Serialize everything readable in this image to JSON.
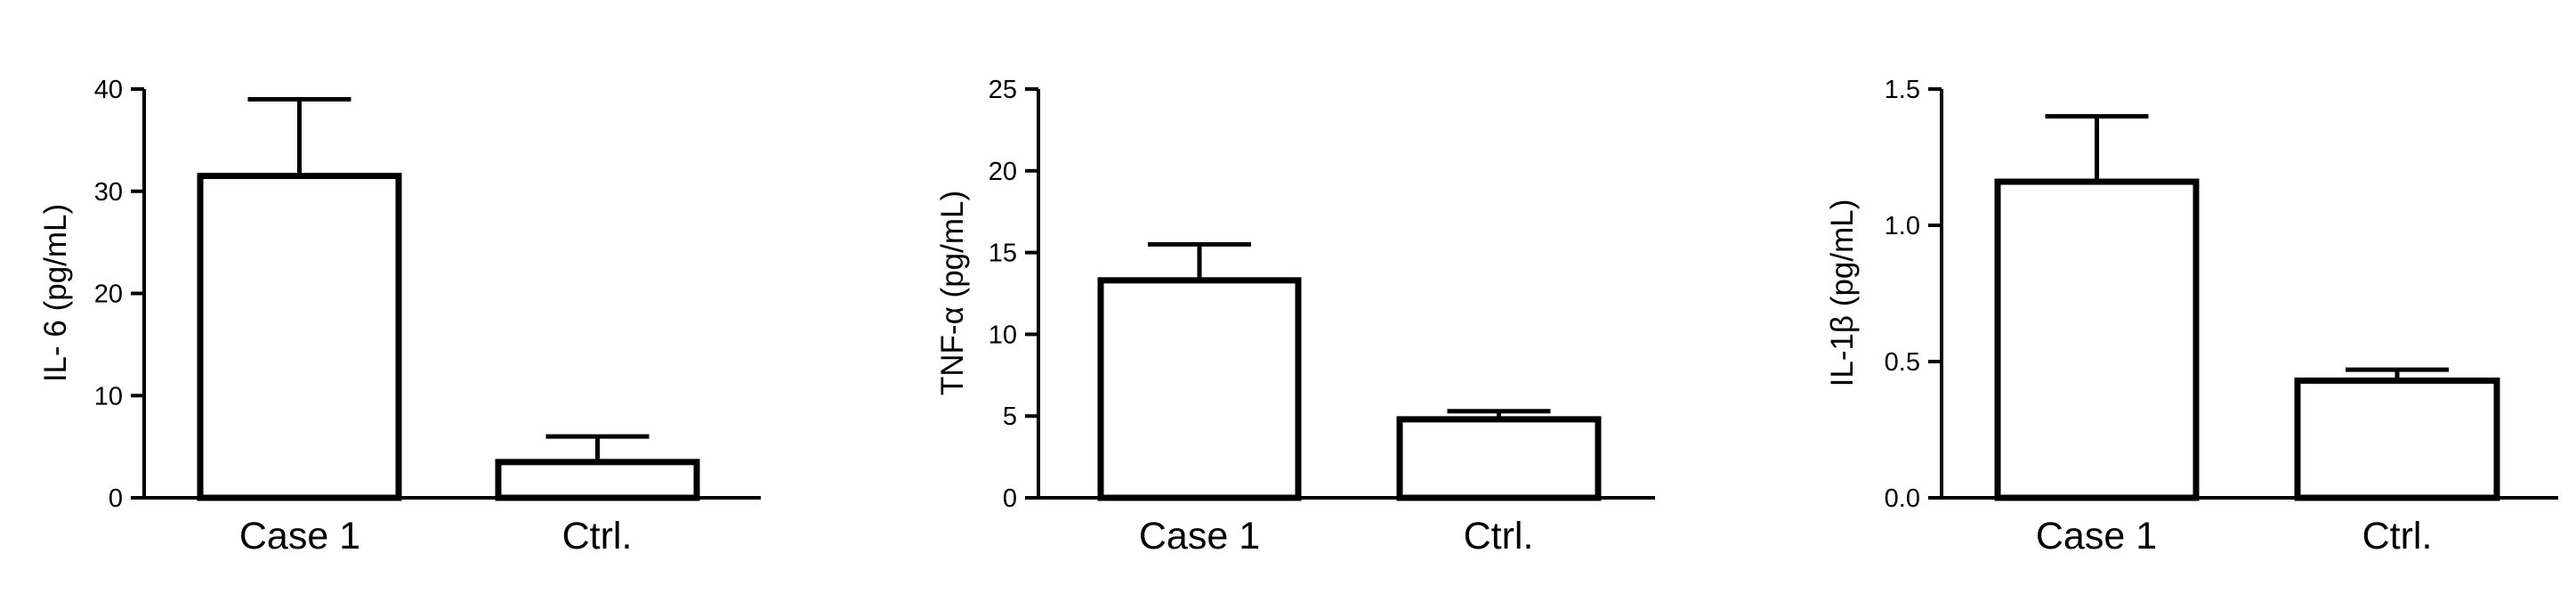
{
  "chart_data": [
    {
      "type": "bar",
      "categories": [
        "Case 1",
        "Ctrl."
      ],
      "values": [
        31.5,
        3.5
      ],
      "error_bars": [
        7.5,
        2.5
      ],
      "ylabel": "IL- 6 (pg/mL)",
      "ylim": [
        0,
        40
      ],
      "yticks": [
        "0",
        "10",
        "20",
        "30",
        "40"
      ],
      "ytick_values": [
        0,
        10,
        20,
        30,
        40
      ]
    },
    {
      "type": "bar",
      "categories": [
        "Case 1",
        "Ctrl."
      ],
      "values": [
        13.3,
        4.8
      ],
      "error_bars": [
        2.2,
        0.5
      ],
      "ylabel": "TNF-α (pg/mL)",
      "ylim": [
        0,
        25
      ],
      "yticks": [
        "0",
        "5",
        "10",
        "15",
        "20",
        "25"
      ],
      "ytick_values": [
        0,
        5,
        10,
        15,
        20,
        25
      ]
    },
    {
      "type": "bar",
      "categories": [
        "Case 1",
        "Ctrl."
      ],
      "values": [
        1.16,
        0.43
      ],
      "error_bars": [
        0.24,
        0.04
      ],
      "ylabel": "IL-1β (pg/mL)",
      "ylim": [
        0,
        1.5
      ],
      "yticks": [
        "0.0",
        "0.5",
        "1.0",
        "1.5"
      ],
      "ytick_values": [
        0,
        0.5,
        1.0,
        1.5
      ]
    }
  ]
}
